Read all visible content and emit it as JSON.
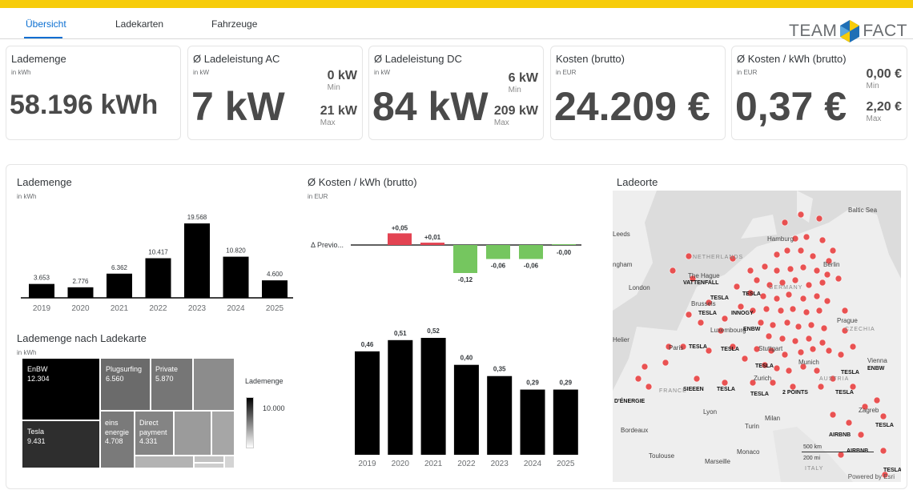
{
  "nav": {
    "tabs": [
      {
        "label": "Übersicht",
        "active": true
      },
      {
        "label": "Ladekarten",
        "active": false
      },
      {
        "label": "Fahrzeuge",
        "active": false
      }
    ],
    "logo_left": "TEAM",
    "logo_right": "FACT"
  },
  "kpis": {
    "lademenge": {
      "title": "Lademenge",
      "unit": "in kWh",
      "value": "58.196 kWh"
    },
    "ac": {
      "title": "Ø Ladeleistung AC",
      "unit": "in kW",
      "value": "7 kW",
      "min_value": "0 kW",
      "min_label": "Min",
      "max_value": "21 kW",
      "max_label": "Max"
    },
    "dc": {
      "title": "Ø Ladeleistung DC",
      "unit": "in kW",
      "value": "84 kW",
      "min_value": "6 kW",
      "min_label": "Min",
      "max_value": "209 kW",
      "max_label": "Max"
    },
    "kosten": {
      "title": "Kosten (brutto)",
      "unit": "in EUR",
      "value": "24.209 €"
    },
    "kosten_kwh": {
      "title": "Ø Kosten / kWh (brutto)",
      "unit": "in EUR",
      "value": "0,37 €",
      "min_value": "0,00 €",
      "min_label": "Min",
      "max_value": "2,20 €",
      "max_label": "Max"
    }
  },
  "chart_lademenge": {
    "title": "Lademenge",
    "unit": "in kWh"
  },
  "chart_kosten": {
    "title": "Ø Kosten / kWh (brutto)",
    "unit": "in EUR"
  },
  "treemap": {
    "title": "Lademenge nach Ladekarte",
    "unit": "in kWh",
    "legend_title": "Lademenge",
    "legend_value": "10.000",
    "items": [
      {
        "name": "EnBW",
        "value": "12.304"
      },
      {
        "name": "Plugsurfing",
        "value": "6.560"
      },
      {
        "name": "Private",
        "value": "5.870"
      },
      {
        "name": "Tesla",
        "value": "9.431"
      },
      {
        "name": "eins energie",
        "value": "4.708"
      },
      {
        "name": "Direct payment",
        "value": "4.331"
      }
    ]
  },
  "map": {
    "title": "Ladeorte",
    "credit": "Powered by Esri",
    "scale_km": "500 km",
    "scale_mi": "200 mi",
    "labels": [
      "Leeds",
      "ngham",
      "London",
      "Helier",
      "Paris",
      "Bordeaux",
      "Toulouse",
      "Lyon",
      "Milan",
      "Turin",
      "Monaco",
      "Marseille",
      "Luxembourg",
      "The Hague",
      "Brussels",
      "Stuttgart",
      "Zurich",
      "Munich",
      "Prague",
      "Vienna",
      "Zagreb",
      "Hamburg",
      "Berlin",
      "Baltic Sea",
      "NETHERLANDS",
      "GERMANY",
      "CZECHIA",
      "AUSTRIA",
      "FRANCE",
      "ITALY"
    ],
    "operators": [
      "VATTENFALL",
      "TESLA",
      "INNOGY",
      "ENBW",
      "SIEEEN",
      "2 POINTS",
      "AIRBNB",
      "D'ÉNERGIE"
    ]
  },
  "chart_data": [
    {
      "type": "bar",
      "title": "Lademenge",
      "ylabel": "in kWh",
      "categories": [
        "2019",
        "2020",
        "2021",
        "2022",
        "2023",
        "2024",
        "2025"
      ],
      "values": [
        3653,
        2776,
        6362,
        10417,
        19568,
        10820,
        4600
      ],
      "labels": [
        "3.653",
        "2.776",
        "6.362",
        "10.417",
        "19.568",
        "10.820",
        "4.600"
      ],
      "ylim": [
        0,
        20000
      ]
    },
    {
      "type": "bar",
      "title": "Ø Kosten / kWh (brutto)",
      "ylabel": "in EUR",
      "category_label": "Δ Previo...",
      "values": [
        0.05,
        0.01,
        -0.12,
        -0.06,
        -0.06,
        -0.0
      ],
      "labels": [
        "+0,05",
        "+0,01",
        "-0,12",
        "-0,06",
        "-0,06",
        "-0,00"
      ],
      "colors": [
        "#e34352",
        "#e34352",
        "#75c65f",
        "#75c65f",
        "#75c65f",
        "#75c65f"
      ],
      "ylim": [
        -0.12,
        0.05
      ]
    },
    {
      "type": "bar",
      "title": "Ø Kosten / kWh (brutto)",
      "ylabel": "in EUR",
      "categories": [
        "2019",
        "2020",
        "2021",
        "2022",
        "2023",
        "2024",
        "2025"
      ],
      "values": [
        0.46,
        0.51,
        0.52,
        0.4,
        0.35,
        0.29,
        0.29
      ],
      "labels": [
        "0,46",
        "0,51",
        "0,52",
        "0,40",
        "0,35",
        "0,29",
        "0,29"
      ],
      "ylim": [
        0,
        0.52
      ]
    }
  ]
}
